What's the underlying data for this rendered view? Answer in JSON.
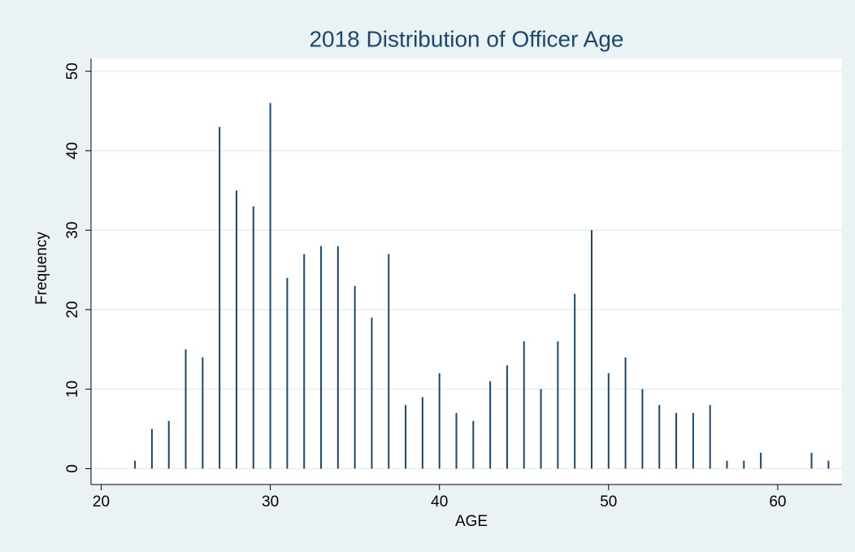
{
  "chart_data": {
    "type": "bar",
    "title": "2018 Distribution of Officer Age",
    "x_label": "AGE",
    "y_label": "Frequency",
    "x": [
      22,
      23,
      24,
      25,
      26,
      27,
      28,
      29,
      30,
      31,
      32,
      33,
      34,
      35,
      36,
      37,
      38,
      39,
      40,
      41,
      42,
      43,
      44,
      45,
      46,
      47,
      48,
      49,
      50,
      51,
      52,
      53,
      54,
      55,
      56,
      57,
      58,
      59,
      62,
      63
    ],
    "values": [
      1,
      5,
      6,
      15,
      14,
      43,
      35,
      33,
      46,
      24,
      27,
      28,
      28,
      23,
      19,
      27,
      8,
      9,
      12,
      7,
      6,
      11,
      13,
      16,
      10,
      16,
      22,
      30,
      12,
      14,
      10,
      8,
      7,
      7,
      8,
      1,
      1,
      2,
      2,
      1
    ],
    "color": "#1a476f",
    "xlim": [
      19.4,
      63.8
    ],
    "xticks": [
      20,
      30,
      40,
      50,
      60
    ],
    "ylim": [
      -2,
      51.6
    ],
    "yticks": [
      0,
      10,
      20,
      30,
      40,
      50
    ],
    "grid": true
  }
}
